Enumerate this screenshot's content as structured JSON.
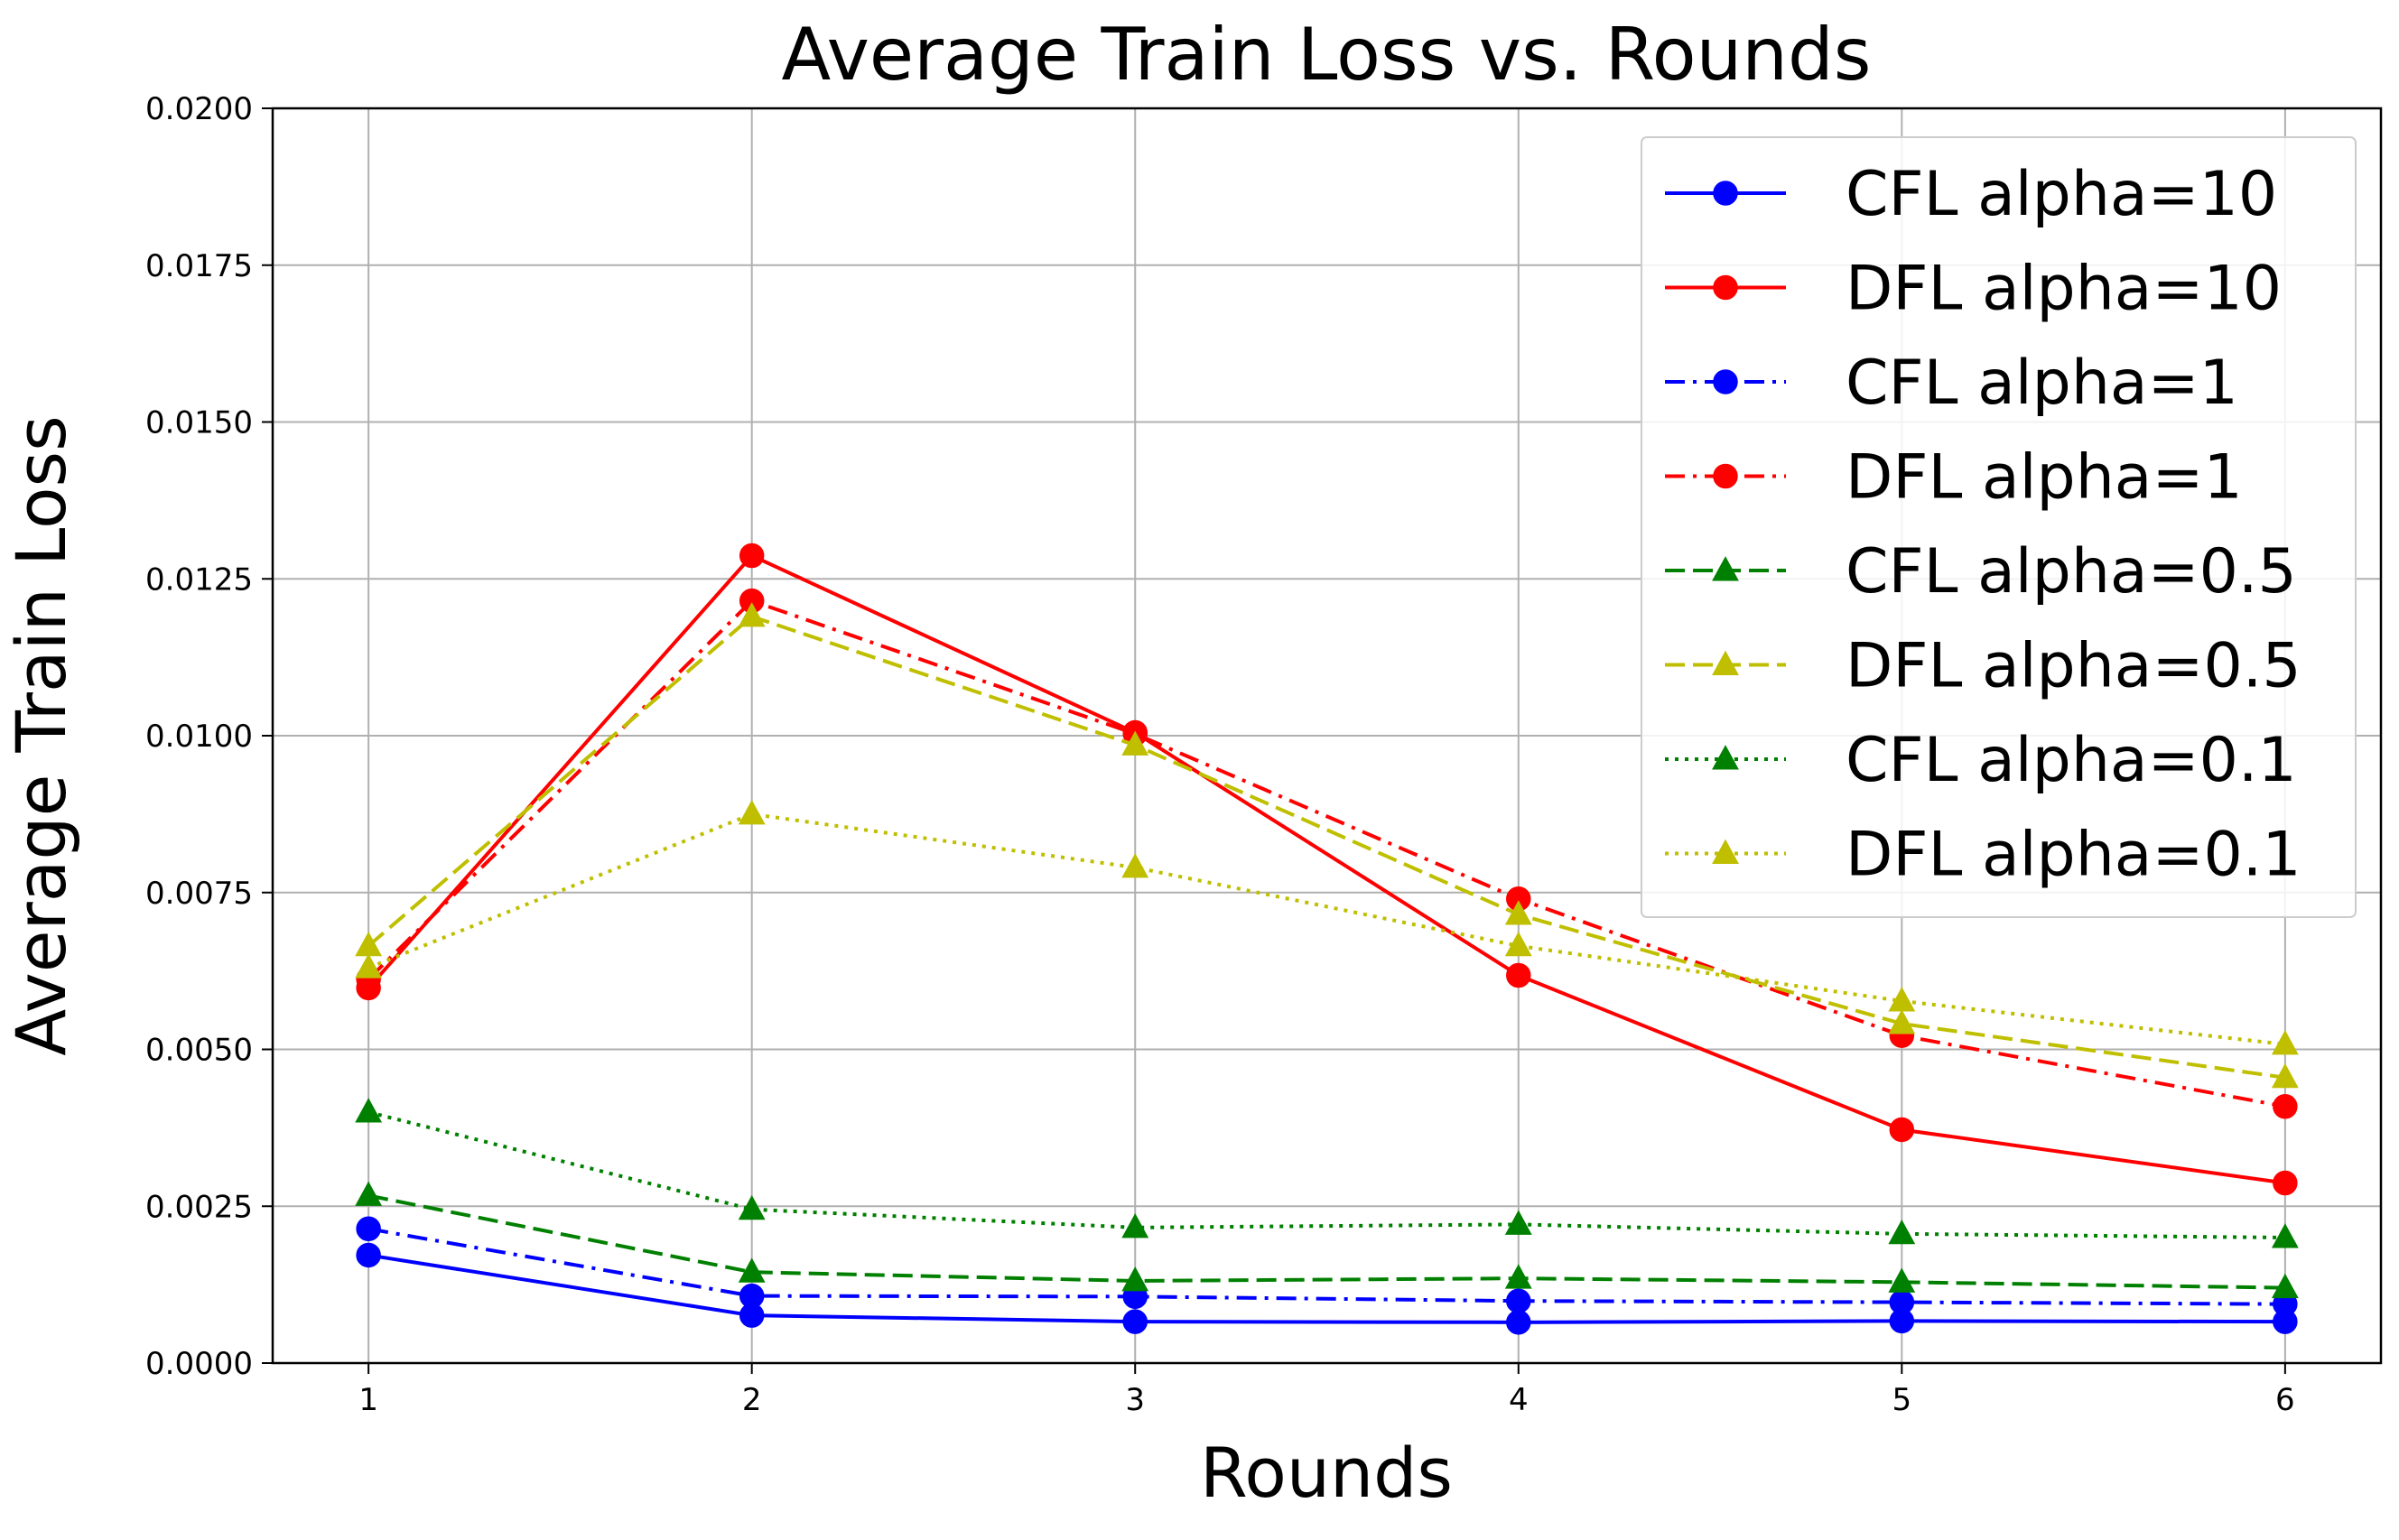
{
  "chart_data": {
    "type": "line",
    "title": "Average Train Loss vs. Rounds",
    "xlabel": "Rounds",
    "ylabel": "Average Train Loss",
    "x": [
      1,
      2,
      3,
      4,
      5,
      6
    ],
    "xlim": [
      0.75,
      6.25
    ],
    "ylim": [
      0,
      0.02
    ],
    "x_ticks": [
      1,
      2,
      3,
      4,
      5,
      6
    ],
    "x_tick_labels": [
      "1",
      "2",
      "3",
      "4",
      "5",
      "6"
    ],
    "y_ticks": [
      0,
      0.0025,
      0.005,
      0.0075,
      0.01,
      0.0125,
      0.015,
      0.0175,
      0.02
    ],
    "y_tick_labels": [
      "0.0000",
      "0.0025",
      "0.0050",
      "0.0075",
      "0.0100",
      "0.0125",
      "0.0150",
      "0.0175",
      "0.0200"
    ],
    "grid": true,
    "legend_position": "top-right",
    "series": [
      {
        "name": "CFL alpha=10",
        "color": "#0000ff",
        "linestyle": "solid",
        "marker": "circle",
        "values": [
          0.00172,
          0.00076,
          0.00066,
          0.00065,
          0.00067,
          0.00066
        ]
      },
      {
        "name": "DFL alpha=10",
        "color": "#ff0000",
        "linestyle": "solid",
        "marker": "circle",
        "values": [
          0.00598,
          0.01287,
          0.01005,
          0.00618,
          0.00372,
          0.00287
        ]
      },
      {
        "name": "CFL alpha=1",
        "color": "#0000ff",
        "linestyle": "dashdot",
        "marker": "circle",
        "values": [
          0.00214,
          0.00107,
          0.00106,
          0.00099,
          0.00097,
          0.00094
        ]
      },
      {
        "name": "DFL alpha=1",
        "color": "#ff0000",
        "linestyle": "dashdot",
        "marker": "circle",
        "values": [
          0.00612,
          0.01215,
          0.01003,
          0.0074,
          0.00522,
          0.00409
        ]
      },
      {
        "name": "CFL alpha=0.5",
        "color": "#008000",
        "linestyle": "dashed",
        "marker": "triangle",
        "values": [
          0.00267,
          0.00145,
          0.00131,
          0.00135,
          0.00129,
          0.0012
        ]
      },
      {
        "name": "DFL alpha=0.5",
        "color": "#bfbf00",
        "linestyle": "dashed",
        "marker": "triangle",
        "values": [
          0.00665,
          0.0119,
          0.00985,
          0.00715,
          0.00541,
          0.00455
        ]
      },
      {
        "name": "CFL alpha=0.1",
        "color": "#008000",
        "linestyle": "dotted",
        "marker": "triangle",
        "values": [
          0.004,
          0.00245,
          0.00216,
          0.00221,
          0.00206,
          0.002
        ]
      },
      {
        "name": "DFL alpha=0.1",
        "color": "#bfbf00",
        "linestyle": "dotted",
        "marker": "triangle",
        "values": [
          0.0063,
          0.00875,
          0.0079,
          0.00665,
          0.00577,
          0.00508
        ]
      }
    ]
  }
}
